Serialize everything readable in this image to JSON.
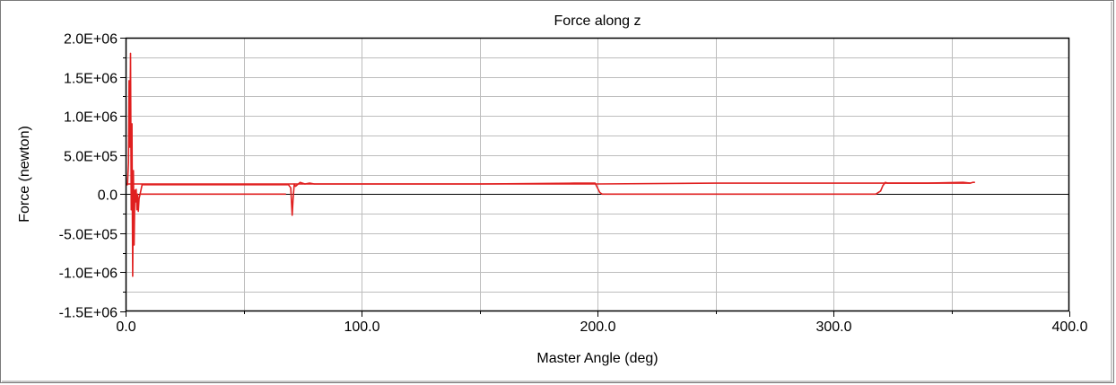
{
  "chart_data": {
    "type": "line",
    "title": "Force along z",
    "xlabel": "Master Angle (deg)",
    "ylabel": "Force (newton)",
    "xlim": [
      0,
      400
    ],
    "ylim": [
      -1500000,
      2000000
    ],
    "x_ticks": [
      0,
      100,
      200,
      300,
      400
    ],
    "x_tick_labels": [
      "0.0",
      "100.0",
      "200.0",
      "300.0",
      "400.0"
    ],
    "y_ticks": [
      2000000,
      1500000,
      1000000,
      500000,
      0,
      -500000,
      -1000000,
      -1500000
    ],
    "y_tick_labels": [
      "2.0E+06",
      "1.5E+06",
      "1.0E+06",
      "5.0E+05",
      "0.0",
      "-5.0E+05",
      "-1.0E+06",
      "-1.5E+06"
    ],
    "x_minor_step": 50,
    "y_minor_step": 250000,
    "grid": true,
    "zero_line": true,
    "colors": {
      "series": "#e02020",
      "grid": "#bdbdbd",
      "axis": "#000000",
      "zero_line": "#000000"
    },
    "series": [
      {
        "x": [
          0,
          0.8,
          1.2,
          1.5,
          1.8,
          2.1,
          2.4,
          2.7,
          3.0,
          3.3,
          3.6,
          3.9,
          4.2,
          4.5,
          4.8,
          5.1,
          5.4,
          5.7,
          6.0,
          7,
          20,
          40,
          60,
          68,
          69,
          70,
          70.6,
          71,
          71.5,
          72,
          74,
          76,
          78,
          80,
          100,
          150,
          190,
          199,
          200,
          201,
          202,
          203,
          250,
          300,
          318,
          320,
          321,
          322,
          323,
          340,
          355,
          358,
          359,
          360
        ],
        "y": [
          120000,
          120000,
          400000,
          1450000,
          600000,
          1800000,
          -200000,
          900000,
          -1050000,
          300000,
          -650000,
          50000,
          -100000,
          60000,
          -200000,
          0,
          -220000,
          -60000,
          -20000,
          120000,
          120000,
          120000,
          120000,
          120000,
          120000,
          80000,
          -270000,
          -60000,
          130000,
          100000,
          150000,
          130000,
          140000,
          130000,
          130000,
          130000,
          140000,
          140000,
          80000,
          20000,
          0,
          0,
          0,
          0,
          0,
          40000,
          110000,
          150000,
          140000,
          140000,
          150000,
          140000,
          150000,
          150000
        ]
      },
      {
        "x": [
          0,
          5,
          20,
          60,
          100,
          150,
          200,
          250,
          300,
          350,
          358
        ],
        "y": [
          130000,
          130000,
          130000,
          130000,
          130000,
          130000,
          130000,
          140000,
          140000,
          140000,
          140000
        ]
      },
      {
        "x": [
          6,
          20,
          40,
          60,
          68
        ],
        "y": [
          0,
          0,
          0,
          0,
          0
        ]
      }
    ]
  }
}
